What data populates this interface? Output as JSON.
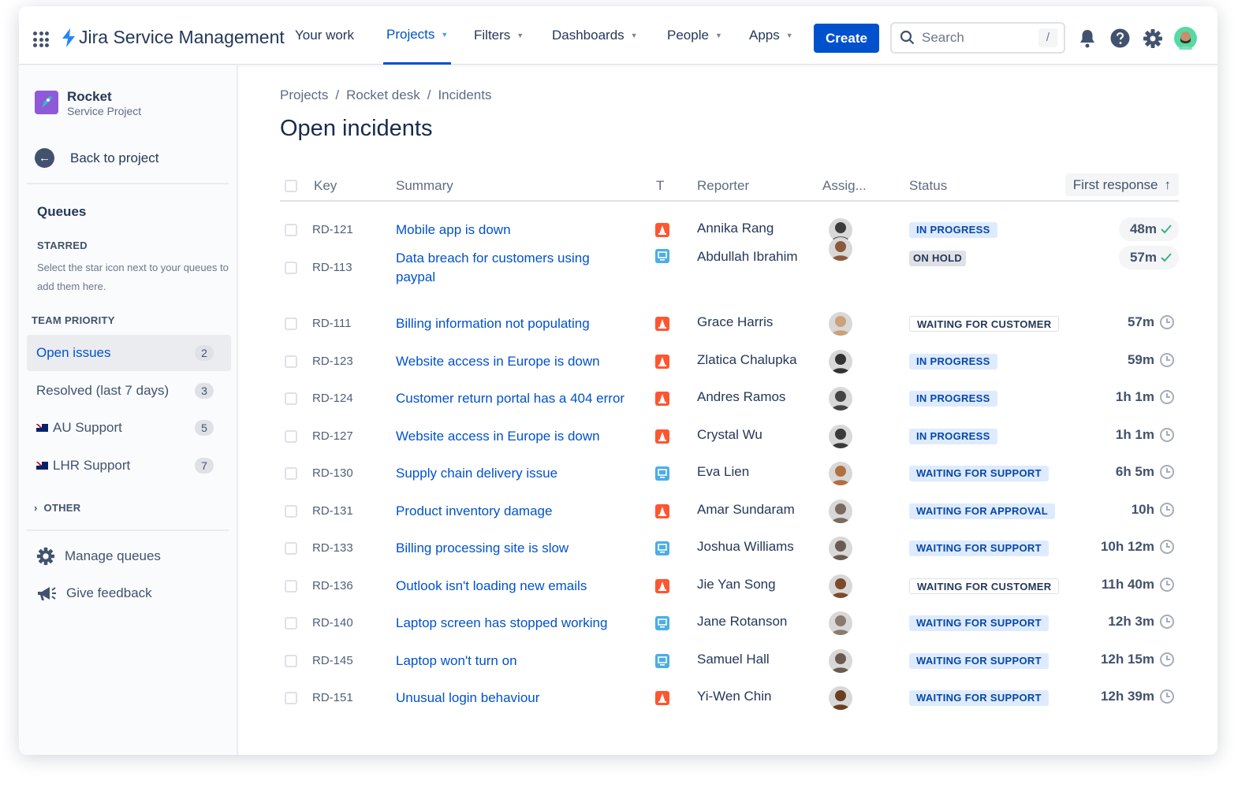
{
  "app": {
    "name": "Jira Service Management",
    "accent": "#0052cc"
  },
  "nav": [
    {
      "label": "Your work",
      "dropdown": false
    },
    {
      "label": "Projects",
      "dropdown": true,
      "active": true
    },
    {
      "label": "Filters",
      "dropdown": true
    },
    {
      "label": "Dashboards",
      "dropdown": true
    },
    {
      "label": "People",
      "dropdown": true
    },
    {
      "label": "Apps",
      "dropdown": true
    }
  ],
  "header": {
    "create_label": "Create",
    "search_placeholder": "Search",
    "search_shortcut": "/"
  },
  "sidebar": {
    "project_name": "Rocket",
    "project_type": "Service Project",
    "back_label": "Back to project",
    "queues_heading": "Queues",
    "starred_heading": "STARRED",
    "starred_note": "Select the star icon next to your queues to add them here.",
    "team_heading": "TEAM PRIORITY",
    "queues": [
      {
        "label": "Open issues",
        "count": "2",
        "selected": true
      },
      {
        "label": "Resolved (last 7 days)",
        "count": "3"
      },
      {
        "label": "AU Support",
        "count": "5",
        "flag": "AU"
      },
      {
        "label": "LHR Support",
        "count": "7",
        "flag": "UK"
      }
    ],
    "other_heading": "OTHER",
    "manage_label": "Manage queues",
    "feedback_label": "Give feedback"
  },
  "main": {
    "breadcrumbs": [
      "Projects",
      "Rocket desk",
      "Incidents"
    ],
    "title": "Open incidents",
    "columns": {
      "key": "Key",
      "summary": "Summary",
      "type": "T",
      "reporter": "Reporter",
      "assignee": "Assig...",
      "status": "Status",
      "first_response": "First response"
    },
    "sort": "ascending",
    "rows": [
      {
        "key": "RD-121",
        "summary": "Mobile app is down",
        "type": "incident",
        "reporter": "Annika Rang",
        "status": "IN PROGRESS",
        "response": "48m",
        "met": true
      },
      {
        "key": "RD-113",
        "summary": "Data breach for customers using paypal",
        "type": "service-request",
        "reporter": "Abdullah Ibrahim",
        "status": "ON HOLD",
        "response": "57m",
        "met": true
      },
      {
        "key": "RD-111",
        "summary": "Billing information not populating",
        "type": "incident",
        "reporter": "Grace Harris",
        "status": "WAITING FOR CUSTOMER",
        "response": "57m",
        "met": false
      },
      {
        "key": "RD-123",
        "summary": "Website access in Europe is down",
        "type": "incident",
        "reporter": "Zlatica Chalupka",
        "status": "IN PROGRESS",
        "response": "59m",
        "met": false
      },
      {
        "key": "RD-124",
        "summary": "Customer return portal has a 404 error",
        "type": "incident",
        "reporter": "Andres Ramos",
        "status": "IN PROGRESS",
        "response": "1h 1m",
        "met": false
      },
      {
        "key": "RD-127",
        "summary": "Website access in Europe is down",
        "type": "incident",
        "reporter": "Crystal Wu",
        "status": "IN PROGRESS",
        "response": "1h 1m",
        "met": false
      },
      {
        "key": "RD-130",
        "summary": "Supply chain delivery issue",
        "type": "service-request",
        "reporter": "Eva Lien",
        "status": "WAITING FOR SUPPORT",
        "response": "6h 5m",
        "met": false
      },
      {
        "key": "RD-131",
        "summary": "Product inventory damage",
        "type": "incident",
        "reporter": "Amar Sundaram",
        "status": "WAITING FOR APPROVAL",
        "response": "10h",
        "met": false
      },
      {
        "key": "RD-133",
        "summary": "Billing processing site is slow",
        "type": "service-request",
        "reporter": "Joshua Williams",
        "status": "WAITING FOR SUPPORT",
        "response": "10h 12m",
        "met": false
      },
      {
        "key": "RD-136",
        "summary": "Outlook isn't loading new emails",
        "type": "incident",
        "reporter": "Jie Yan Song",
        "status": "WAITING FOR CUSTOMER",
        "response": "11h 40m",
        "met": false
      },
      {
        "key": "RD-140",
        "summary": "Laptop screen has stopped working",
        "type": "service-request",
        "reporter": "Jane Rotanson",
        "status": "WAITING FOR SUPPORT",
        "response": "12h 3m",
        "met": false
      },
      {
        "key": "RD-145",
        "summary": "Laptop won't turn on",
        "type": "service-request",
        "reporter": "Samuel Hall",
        "status": "WAITING FOR SUPPORT",
        "response": "12h 15m",
        "met": false
      },
      {
        "key": "RD-151",
        "summary": "Unusual login behaviour",
        "type": "incident",
        "reporter": "Yi-Wen Chin",
        "status": "WAITING FOR SUPPORT",
        "response": "12h 39m",
        "met": false
      }
    ]
  },
  "colors": {
    "incident": "#ff5630",
    "service_request": "#4bade8",
    "in_progress_bg": "#deebff",
    "in_progress_fg": "#0747a6",
    "on_hold_bg": "#dfe1e6",
    "met": "#36b37e"
  }
}
